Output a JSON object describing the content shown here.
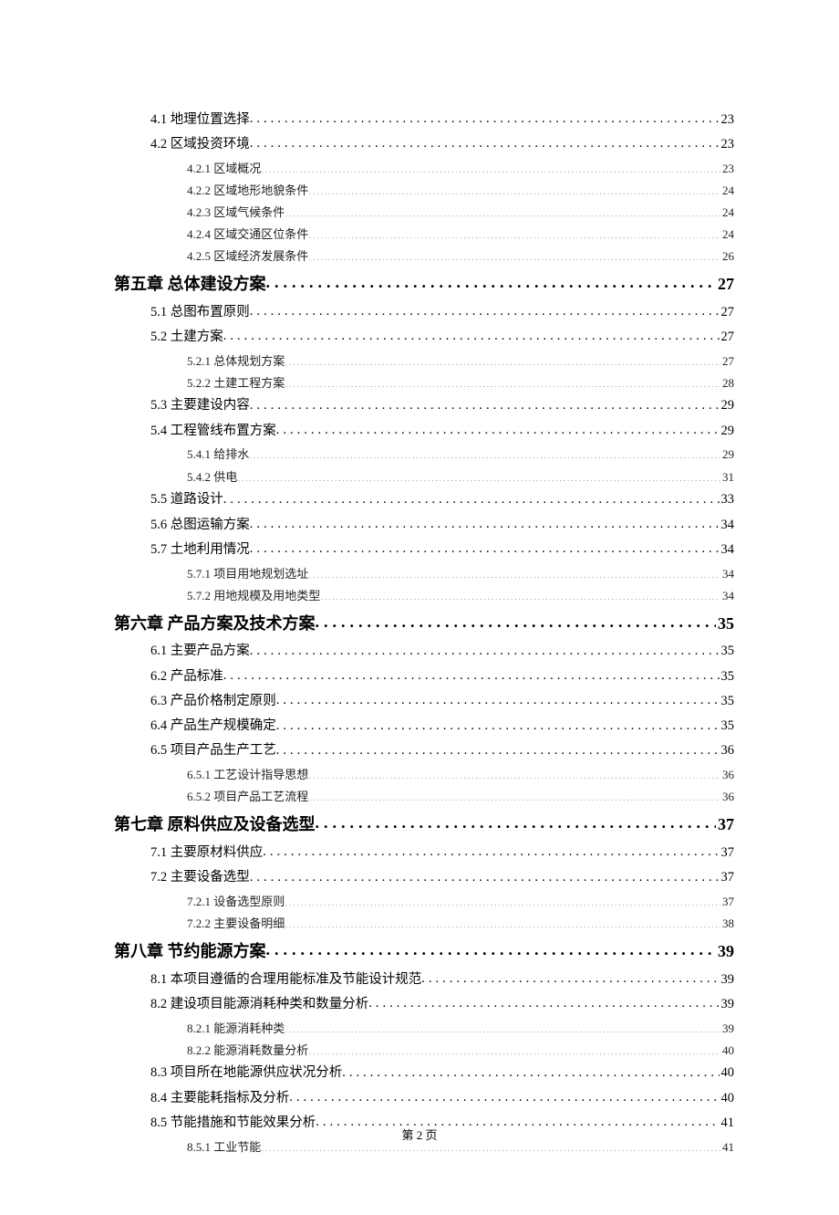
{
  "page_footer": "第 2 页",
  "colors": {
    "text": "#000000",
    "background": "#ffffff"
  },
  "typography": {
    "chapter_fontsize": 18,
    "section_fontsize": 14.5,
    "subsection_fontsize": 13,
    "footer_fontsize": 13,
    "chapter_font": "KaiTi",
    "body_font": "SimSun"
  },
  "toc": [
    {
      "level": "section",
      "label": "4.1 地理位置选择",
      "page": "23"
    },
    {
      "level": "section",
      "label": "4.2 区域投资环境",
      "page": "23"
    },
    {
      "level": "subsection",
      "label": "4.2.1 区域概况",
      "page": "23"
    },
    {
      "level": "subsection",
      "label": "4.2.2 区域地形地貌条件",
      "page": "24"
    },
    {
      "level": "subsection",
      "label": "4.2.3 区域气候条件",
      "page": "24"
    },
    {
      "level": "subsection",
      "label": "4.2.4 区域交通区位条件",
      "page": "24"
    },
    {
      "level": "subsection",
      "label": "4.2.5 区域经济发展条件",
      "page": "26"
    },
    {
      "level": "chapter",
      "label": "第五章  总体建设方案",
      "page": "27"
    },
    {
      "level": "section",
      "label": "5.1 总图布置原则",
      "page": "27"
    },
    {
      "level": "section",
      "label": "5.2 土建方案",
      "page": "27"
    },
    {
      "level": "subsection",
      "label": "5.2.1 总体规划方案",
      "page": "27"
    },
    {
      "level": "subsection",
      "label": "5.2.2 土建工程方案",
      "page": "28"
    },
    {
      "level": "section",
      "label": "5.3 主要建设内容",
      "page": "29"
    },
    {
      "level": "section",
      "label": "5.4 工程管线布置方案",
      "page": "29"
    },
    {
      "level": "subsection",
      "label": "5.4.1 给排水",
      "page": "29"
    },
    {
      "level": "subsection",
      "label": "5.4.2 供电",
      "page": "31"
    },
    {
      "level": "section",
      "label": "5.5 道路设计",
      "page": "33"
    },
    {
      "level": "section",
      "label": "5.6 总图运输方案",
      "page": "34"
    },
    {
      "level": "section",
      "label": "5.7 土地利用情况",
      "page": "34"
    },
    {
      "level": "subsection",
      "label": "5.7.1 项目用地规划选址",
      "page": "34"
    },
    {
      "level": "subsection",
      "label": "5.7.2 用地规模及用地类型",
      "page": "34"
    },
    {
      "level": "chapter",
      "label": "第六章  产品方案及技术方案",
      "page": "35"
    },
    {
      "level": "section",
      "label": "6.1 主要产品方案",
      "page": "35"
    },
    {
      "level": "section",
      "label": "6.2 产品标准",
      "page": "35"
    },
    {
      "level": "section",
      "label": "6.3 产品价格制定原则",
      "page": "35"
    },
    {
      "level": "section",
      "label": "6.4 产品生产规模确定",
      "page": "35"
    },
    {
      "level": "section",
      "label": "6.5 项目产品生产工艺",
      "page": "36"
    },
    {
      "level": "subsection",
      "label": "6.5.1 工艺设计指导思想",
      "page": "36"
    },
    {
      "level": "subsection",
      "label": "6.5.2 项目产品工艺流程",
      "page": "36"
    },
    {
      "level": "chapter",
      "label": "第七章  原料供应及设备选型",
      "page": "37"
    },
    {
      "level": "section",
      "label": "7.1 主要原材料供应",
      "page": "37"
    },
    {
      "level": "section",
      "label": "7.2 主要设备选型",
      "page": "37"
    },
    {
      "level": "subsection",
      "label": "7.2.1 设备选型原则",
      "page": "37"
    },
    {
      "level": "subsection",
      "label": "7.2.2 主要设备明细",
      "page": "38"
    },
    {
      "level": "chapter",
      "label": "第八章  节约能源方案",
      "page": "39"
    },
    {
      "level": "section",
      "label": "8.1 本项目遵循的合理用能标准及节能设计规范",
      "page": "39"
    },
    {
      "level": "section",
      "label": "8.2 建设项目能源消耗种类和数量分析",
      "page": "39"
    },
    {
      "level": "subsection",
      "label": "8.2.1 能源消耗种类",
      "page": "39"
    },
    {
      "level": "subsection",
      "label": "8.2.2 能源消耗数量分析",
      "page": "40"
    },
    {
      "level": "section",
      "label": "8.3 项目所在地能源供应状况分析",
      "page": "40"
    },
    {
      "level": "section",
      "label": "8.4 主要能耗指标及分析",
      "page": "40"
    },
    {
      "level": "section",
      "label": "8.5 节能措施和节能效果分析",
      "page": "41"
    },
    {
      "level": "subsection",
      "label": "8.5.1 工业节能",
      "page": "41"
    }
  ]
}
